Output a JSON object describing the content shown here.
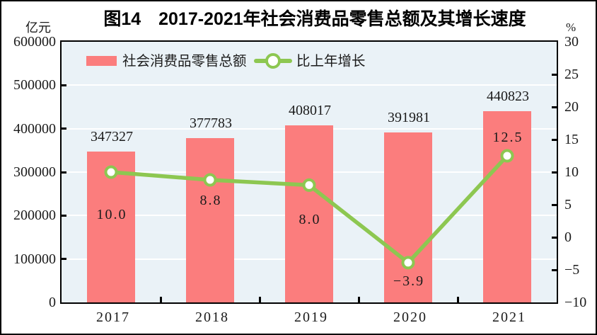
{
  "title": "图14　2017-2021年社会消费品零售总额及其增长速度",
  "left_axis_unit": "亿元",
  "right_axis_unit": "%",
  "legend": {
    "bar_label": "社会消费品零售总额",
    "line_label": "比上年增长"
  },
  "colors": {
    "bar": "#fb7d7d",
    "line": "#8dc751",
    "marker_fill": "#ffffff",
    "plot_bg": "#eaf2f7",
    "grid": "#ffffff",
    "frame": "#000000",
    "text": "#1b1b1b"
  },
  "chart_data": {
    "type": "bar",
    "title": "图14　2017-2021年社会消费品零售总额及其增长速度",
    "categories": [
      "2017",
      "2018",
      "2019",
      "2020",
      "2021"
    ],
    "series": [
      {
        "name": "社会消费品零售总额",
        "type": "bar",
        "axis": "left",
        "unit": "亿元",
        "values": [
          347327,
          377783,
          408017,
          391981,
          440823
        ]
      },
      {
        "name": "比上年增长",
        "type": "line",
        "axis": "right",
        "unit": "%",
        "values": [
          10.0,
          8.8,
          8.0,
          -3.9,
          12.5
        ]
      }
    ],
    "left_ylabel": "亿元",
    "right_ylabel": "%",
    "left_ylim": [
      0,
      600000
    ],
    "right_ylim": [
      -10,
      30
    ],
    "left_ticks": [
      0,
      100000,
      200000,
      300000,
      400000,
      500000,
      600000
    ],
    "right_ticks": [
      30,
      25,
      20,
      15,
      10,
      5,
      0,
      -5,
      -10
    ],
    "grid": true,
    "legend_position": "top-left-inside"
  }
}
